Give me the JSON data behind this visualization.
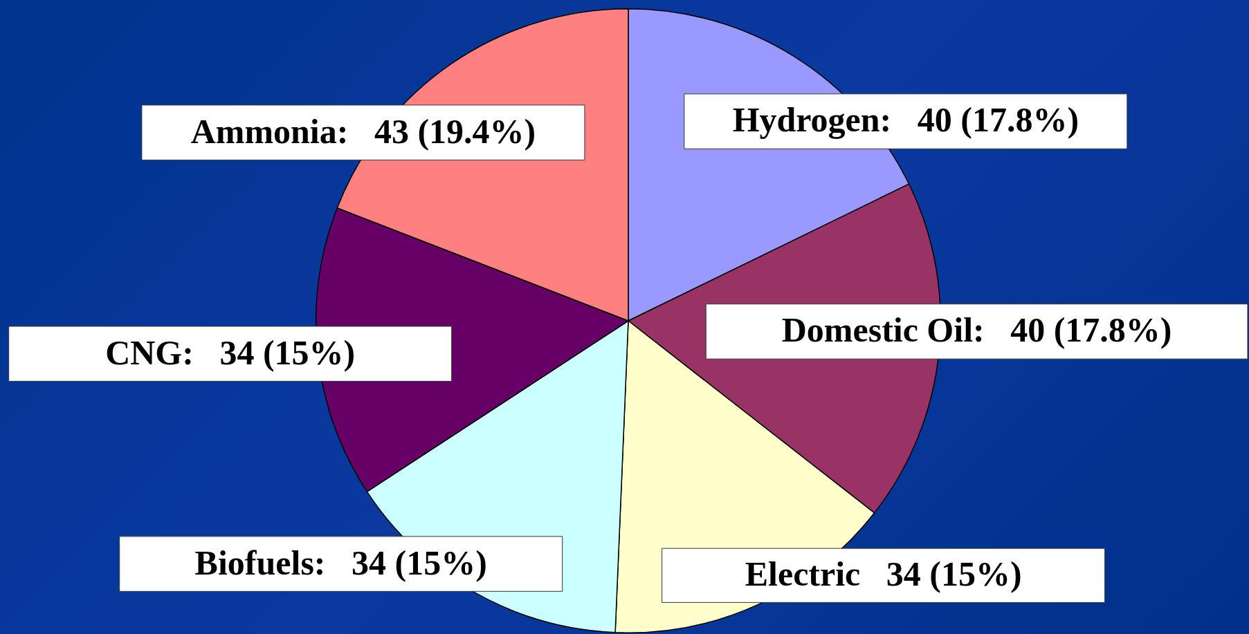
{
  "chart_data": {
    "type": "pie",
    "categories": [
      "Hydrogen",
      "Domestic Oil",
      "Electric",
      "Biofuels",
      "CNG",
      "Ammonia"
    ],
    "values": [
      40,
      40,
      34,
      34,
      34,
      43
    ],
    "colors": [
      "#9999ff",
      "#993366",
      "#ffffcc",
      "#ccffff",
      "#660066",
      "#ff8080"
    ],
    "value_labels": [
      "40 (17.8%)",
      "40 (17.8%)",
      "34 (15%)",
      "34 (15%)",
      "34 (15%)",
      "43 (19.4%)"
    ],
    "legend": false
  }
}
